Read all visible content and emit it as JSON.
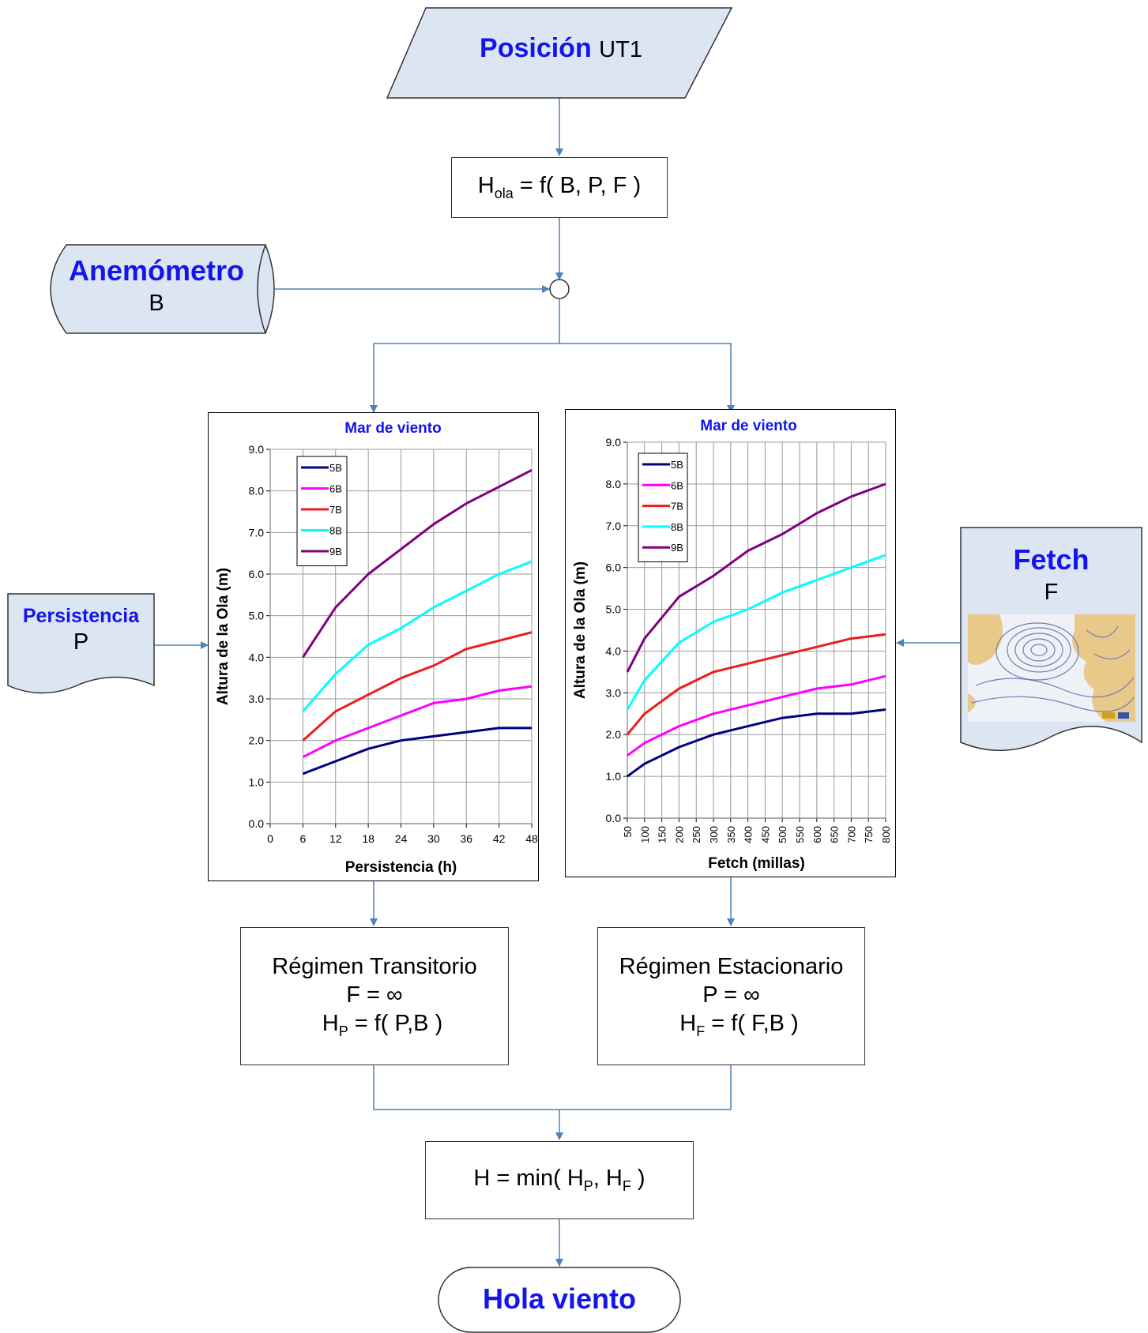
{
  "colors": {
    "connector": "#4f81bd",
    "shape_fill": "#dce6f2",
    "accent_text": "#1414ee"
  },
  "posicion": {
    "title": "Posición",
    "suffix": "UT1"
  },
  "hola_formula": {
    "h": "H",
    "sub": "ola",
    "rest": " = f( B, P, F )"
  },
  "anemometro": {
    "title": "Anemómetro",
    "value": "B"
  },
  "persistencia": {
    "title": "Persistencia",
    "value": "P"
  },
  "fetch": {
    "title": "Fetch",
    "value": "F",
    "map_icon": "weather-map-icon"
  },
  "transitorio": {
    "title": "Régimen Transitorio",
    "line2": "F = ∞",
    "h": "H",
    "sub": "P",
    "rest": " = f( P,B )"
  },
  "estacionario": {
    "title": "Régimen Estacionario",
    "line2": "P = ∞",
    "h": "H",
    "sub": "F",
    "rest": " = f( F,B )"
  },
  "min_box": {
    "h1": "H = min( H",
    "sub1": "P",
    "mid": ", H",
    "sub2": "F",
    "end": " )"
  },
  "hola_viento": {
    "title": "Hola viento"
  },
  "chart_data": [
    {
      "type": "line",
      "title": "Mar de viento",
      "xlabel": "Persistencia (h)",
      "ylabel": "Altura de la Ola (m)",
      "x": [
        6,
        12,
        18,
        24,
        30,
        36,
        42,
        48
      ],
      "x_ticks": [
        "0",
        "6",
        "12",
        "18",
        "24",
        "30",
        "36",
        "42",
        "48"
      ],
      "y_ticks": [
        "0.0",
        "1.0",
        "2.0",
        "3.0",
        "4.0",
        "5.0",
        "6.0",
        "7.0",
        "8.0",
        "9.0"
      ],
      "ylim": [
        0,
        9
      ],
      "grid": true,
      "legend_position": "top-left",
      "series": [
        {
          "name": "5B",
          "color": "#000080",
          "values": [
            1.2,
            1.5,
            1.8,
            2.0,
            2.1,
            2.2,
            2.3,
            2.3
          ]
        },
        {
          "name": "6B",
          "color": "#ff00ff",
          "values": [
            1.6,
            2.0,
            2.3,
            2.6,
            2.9,
            3.0,
            3.2,
            3.3
          ]
        },
        {
          "name": "7B",
          "color": "#ee1c1c",
          "values": [
            2.0,
            2.7,
            3.1,
            3.5,
            3.8,
            4.2,
            4.4,
            4.6
          ]
        },
        {
          "name": "8B",
          "color": "#00ffff",
          "values": [
            2.7,
            3.6,
            4.3,
            4.7,
            5.2,
            5.6,
            6.0,
            6.3
          ]
        },
        {
          "name": "9B",
          "color": "#800080",
          "values": [
            4.0,
            5.2,
            6.0,
            6.6,
            7.2,
            7.7,
            8.1,
            8.5
          ]
        }
      ]
    },
    {
      "type": "line",
      "title": "Mar de viento",
      "xlabel": "Fetch (millas)",
      "ylabel": "Altura de la Ola (m)",
      "x": [
        50,
        100,
        200,
        300,
        400,
        500,
        600,
        700,
        800
      ],
      "x_ticks": [
        "50",
        "100",
        "150",
        "200",
        "250",
        "300",
        "350",
        "400",
        "450",
        "500",
        "550",
        "600",
        "650",
        "700",
        "750",
        "800"
      ],
      "y_ticks": [
        "0.0",
        "1.0",
        "2.0",
        "3.0",
        "4.0",
        "5.0",
        "6.0",
        "7.0",
        "8.0",
        "9.0"
      ],
      "ylim": [
        0,
        9
      ],
      "grid": true,
      "legend_position": "top-left",
      "series": [
        {
          "name": "5B",
          "color": "#000080",
          "values": [
            1.0,
            1.3,
            1.7,
            2.0,
            2.2,
            2.4,
            2.5,
            2.5,
            2.6
          ]
        },
        {
          "name": "6B",
          "color": "#ff00ff",
          "values": [
            1.5,
            1.8,
            2.2,
            2.5,
            2.7,
            2.9,
            3.1,
            3.2,
            3.4
          ]
        },
        {
          "name": "7B",
          "color": "#ee1c1c",
          "values": [
            2.0,
            2.5,
            3.1,
            3.5,
            3.7,
            3.9,
            4.1,
            4.3,
            4.4
          ]
        },
        {
          "name": "8B",
          "color": "#00ffff",
          "values": [
            2.6,
            3.3,
            4.2,
            4.7,
            5.0,
            5.4,
            5.7,
            6.0,
            6.3
          ]
        },
        {
          "name": "9B",
          "color": "#800080",
          "values": [
            3.5,
            4.3,
            5.3,
            5.8,
            6.4,
            6.8,
            7.3,
            7.7,
            8.0
          ]
        }
      ]
    }
  ]
}
